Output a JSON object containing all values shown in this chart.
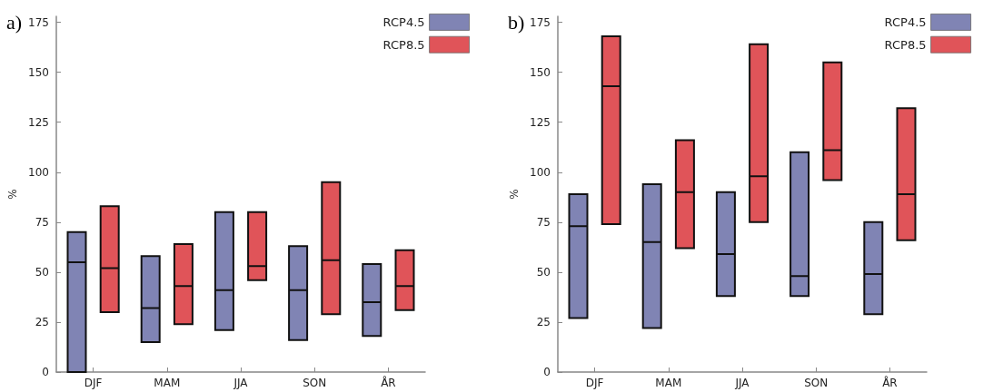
{
  "chart_data": [
    {
      "type": "box",
      "title": "a)",
      "ylabel": "%",
      "categories": [
        "DJF",
        "MAM",
        "JJA",
        "SON",
        "ÅR"
      ],
      "ylim": [
        0,
        178
      ],
      "yticks": [
        0,
        25,
        50,
        75,
        100,
        125,
        150,
        175
      ],
      "grid": false,
      "legend": "top right",
      "series": [
        {
          "name": "RCP4.5",
          "color": "#8084b4",
          "boxes": [
            {
              "low": 0,
              "q1": 0,
              "median": 55,
              "q3": 70,
              "high": 70
            },
            {
              "low": 15,
              "q1": 15,
              "median": 32,
              "q3": 58,
              "high": 58
            },
            {
              "low": 21,
              "q1": 21,
              "median": 41,
              "q3": 80,
              "high": 80
            },
            {
              "low": 16,
              "q1": 16,
              "median": 41,
              "q3": 63,
              "high": 63
            },
            {
              "low": 18,
              "q1": 18,
              "median": 35,
              "q3": 54,
              "high": 54
            }
          ]
        },
        {
          "name": "RCP8.5",
          "color": "#e05459",
          "boxes": [
            {
              "low": 30,
              "q1": 30,
              "median": 52,
              "q3": 83,
              "high": 83
            },
            {
              "low": 24,
              "q1": 24,
              "median": 43,
              "q3": 64,
              "high": 64
            },
            {
              "low": 46,
              "q1": 46,
              "median": 53,
              "q3": 80,
              "high": 80
            },
            {
              "low": 29,
              "q1": 29,
              "median": 56,
              "q3": 95,
              "high": 95
            },
            {
              "low": 31,
              "q1": 31,
              "median": 43,
              "q3": 61,
              "high": 61
            }
          ]
        }
      ]
    },
    {
      "type": "box",
      "title": "b)",
      "ylabel": "%",
      "categories": [
        "DJF",
        "MAM",
        "JJA",
        "SON",
        "ÅR"
      ],
      "ylim": [
        0,
        178
      ],
      "yticks": [
        0,
        25,
        50,
        75,
        100,
        125,
        150,
        175
      ],
      "grid": false,
      "legend": "top right",
      "series": [
        {
          "name": "RCP4.5",
          "color": "#8084b4",
          "boxes": [
            {
              "low": 27,
              "q1": 27,
              "median": 73,
              "q3": 89,
              "high": 89
            },
            {
              "low": 22,
              "q1": 22,
              "median": 65,
              "q3": 94,
              "high": 94
            },
            {
              "low": 38,
              "q1": 38,
              "median": 59,
              "q3": 90,
              "high": 90
            },
            {
              "low": 38,
              "q1": 38,
              "median": 48,
              "q3": 110,
              "high": 110
            },
            {
              "low": 29,
              "q1": 29,
              "median": 49,
              "q3": 75,
              "high": 75
            }
          ]
        },
        {
          "name": "RCP8.5",
          "color": "#e05459",
          "boxes": [
            {
              "low": 74,
              "q1": 74,
              "median": 143,
              "q3": 168,
              "high": 168
            },
            {
              "low": 62,
              "q1": 62,
              "median": 90,
              "q3": 116,
              "high": 116
            },
            {
              "low": 75,
              "q1": 75,
              "median": 98,
              "q3": 164,
              "high": 164
            },
            {
              "low": 96,
              "q1": 96,
              "median": 111,
              "q3": 155,
              "high": 155
            },
            {
              "low": 66,
              "q1": 66,
              "median": 89,
              "q3": 132,
              "high": 132
            }
          ]
        }
      ]
    }
  ]
}
